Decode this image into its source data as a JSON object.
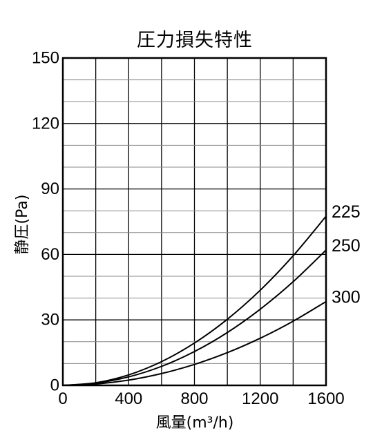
{
  "chart_data": {
    "type": "line",
    "title": "圧力損失特性",
    "xlabel": "風量(m³/h)",
    "ylabel": "静圧(Pa)",
    "xlim": [
      0,
      1600
    ],
    "ylim": [
      0,
      150
    ],
    "xticks": [
      "0",
      "400",
      "800",
      "1200",
      "1600"
    ],
    "yticks": [
      "0",
      "30",
      "60",
      "90",
      "120",
      "150"
    ],
    "grid": true,
    "series": [
      {
        "name": "225",
        "x": [
          0,
          200,
          400,
          600,
          800,
          1000,
          1200,
          1400,
          1600
        ],
        "y": [
          0,
          1.2,
          4.8,
          10.9,
          19.4,
          30.3,
          43.6,
          59.4,
          77.5
        ]
      },
      {
        "name": "250",
        "x": [
          0,
          200,
          400,
          600,
          800,
          1000,
          1200,
          1400,
          1600
        ],
        "y": [
          0,
          1.0,
          3.9,
          8.7,
          15.5,
          24.2,
          34.9,
          47.5,
          62.0
        ]
      },
      {
        "name": "300",
        "x": [
          0,
          200,
          400,
          600,
          800,
          1000,
          1200,
          1400,
          1600
        ],
        "y": [
          0,
          0.6,
          2.4,
          5.4,
          9.6,
          15.0,
          21.6,
          29.4,
          38.4
        ]
      }
    ]
  }
}
